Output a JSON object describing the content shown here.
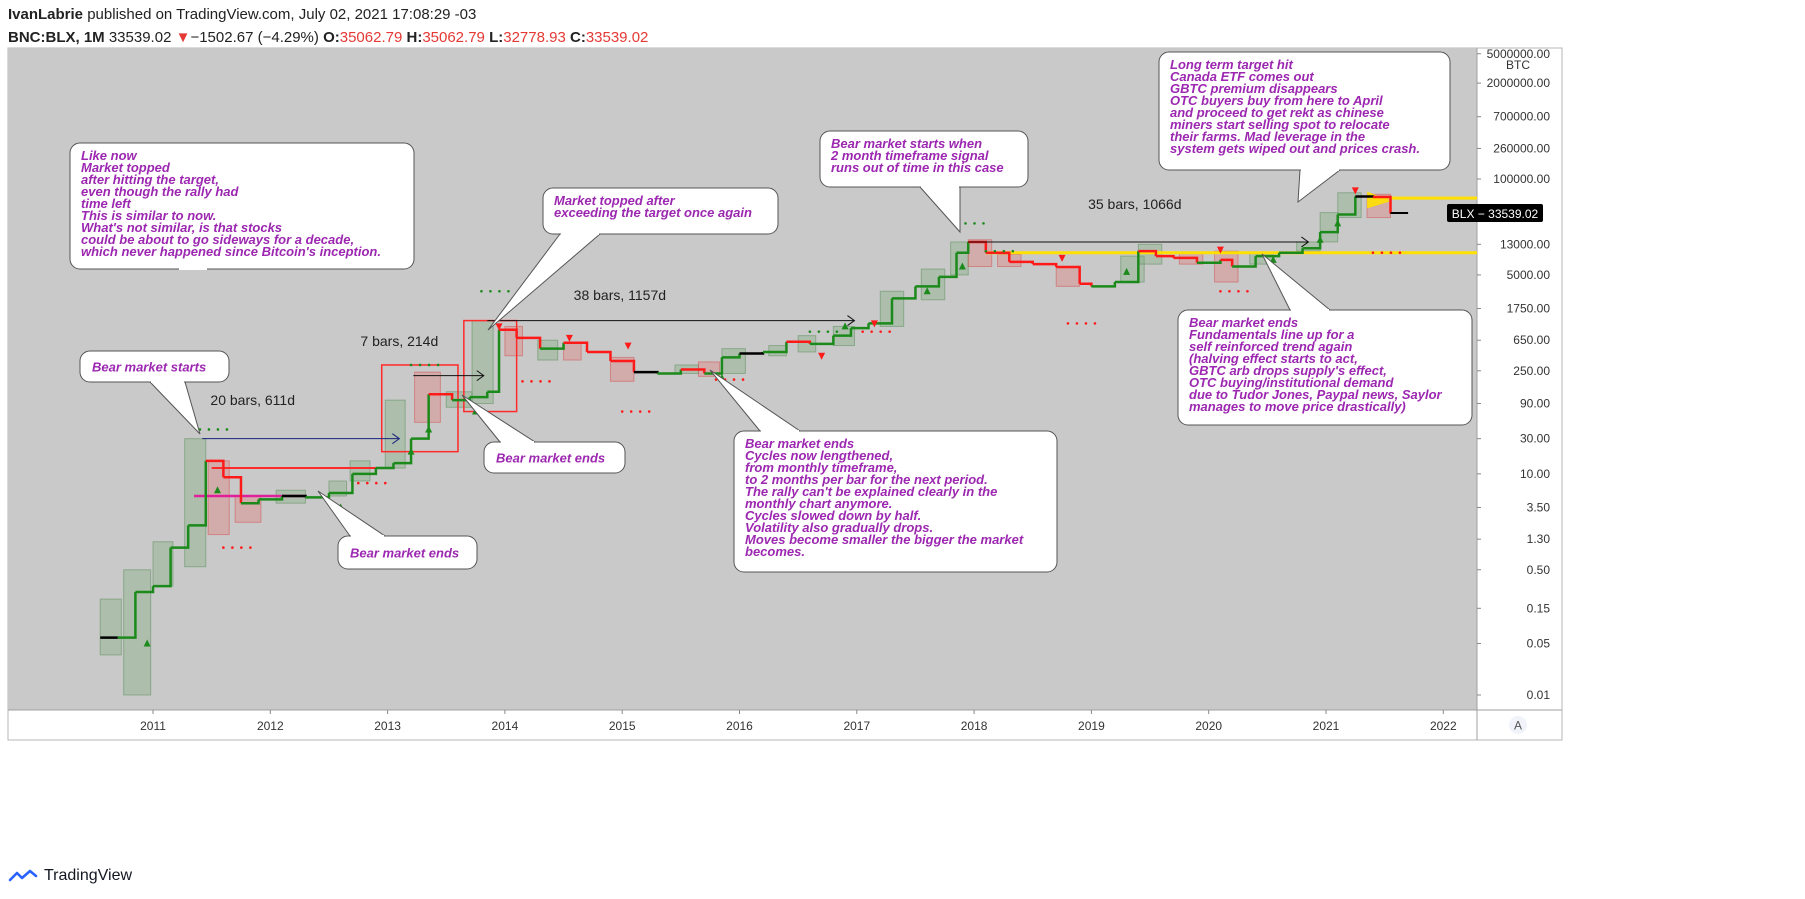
{
  "header": {
    "author": "IvanLabrie",
    "published": "published on TradingView.com, July 02, 2021 17:08:29 -03",
    "symbol": "BNC:BLX, 1M",
    "price": "33539.02",
    "change_arrow": "▼",
    "change": "−1502.67 (−4.29%)",
    "o_label": "O:",
    "o_value": "35062.79",
    "h_label": "H:",
    "h_value": "35062.79",
    "l_label": "L:",
    "l_value": "32778.93",
    "c_label": "C:",
    "c_value": "33539.02"
  },
  "footer": {
    "brand": "TradingView"
  },
  "colors": {
    "bg": "#c9c9c9",
    "up": "#1b8a1b",
    "down": "#ff1a1a",
    "neutral": "#000000",
    "accent_text": "#9c27b0",
    "target_line": "#ffe000"
  },
  "chart_data": {
    "type": "line",
    "title": "BNC:BLX, 1M",
    "yscale": "log",
    "currency": "BTC",
    "ylim": [
      0.008,
      5000000
    ],
    "xlim": [
      2010.1,
      2022.35
    ],
    "x_ticks": [
      "2011",
      "2012",
      "2013",
      "2014",
      "2015",
      "2016",
      "2017",
      "2018",
      "2019",
      "2020",
      "2021",
      "2022"
    ],
    "y_ticks": [
      "5000000.00",
      "2000000.00",
      "700000.00",
      "260000.00",
      "100000.00",
      "13000.00",
      "5000.00",
      "1750.00",
      "650.00",
      "250.00",
      "90.00",
      "30.00",
      "10.00",
      "3.50",
      "1.30",
      "0.50",
      "0.15",
      "0.05",
      "0.01"
    ],
    "last_price_label": "BLX",
    "last_price": "33539.02",
    "series": [
      {
        "name": "BLX monthly step (approx.)",
        "x": [
          2010.55,
          2010.7,
          2010.85,
          2011.0,
          2011.15,
          2011.3,
          2011.45,
          2011.6,
          2011.75,
          2011.9,
          2012.1,
          2012.3,
          2012.5,
          2012.7,
          2012.9,
          2013.05,
          2013.2,
          2013.35,
          2013.55,
          2013.7,
          2013.85,
          2013.95,
          2014.1,
          2014.3,
          2014.5,
          2014.7,
          2014.9,
          2015.1,
          2015.3,
          2015.5,
          2015.7,
          2015.85,
          2016.0,
          2016.2,
          2016.4,
          2016.6,
          2016.8,
          2016.95,
          2017.1,
          2017.3,
          2017.5,
          2017.7,
          2017.85,
          2017.95,
          2018.1,
          2018.3,
          2018.5,
          2018.7,
          2018.9,
          2019.0,
          2019.2,
          2019.4,
          2019.55,
          2019.7,
          2019.9,
          2020.1,
          2020.2,
          2020.4,
          2020.6,
          2020.8,
          2020.95,
          2021.1,
          2021.25,
          2021.4,
          2021.55
        ],
        "y": [
          0.06,
          0.06,
          0.25,
          0.3,
          1.0,
          2.0,
          15.0,
          9.0,
          4.0,
          4.5,
          5.0,
          4.8,
          5.5,
          10.0,
          12.0,
          14.0,
          30.0,
          120.0,
          100.0,
          110.0,
          130.0,
          900.0,
          700.0,
          500.0,
          600.0,
          450.0,
          340.0,
          240.0,
          230.0,
          260.0,
          230.0,
          380.0,
          430.0,
          450.0,
          620.0,
          580.0,
          750.0,
          950.0,
          1100.0,
          2400.0,
          3500.0,
          4700.0,
          10000.0,
          14000.0,
          10000.0,
          7500.0,
          7000.0,
          6400.0,
          3800.0,
          3500.0,
          4000.0,
          10500.0,
          9000.0,
          8500.0,
          7300.0,
          8000.0,
          6500.0,
          9000.0,
          10000.0,
          11500.0,
          19000.0,
          33000.0,
          58000.0,
          57000.0,
          34000.0
        ]
      }
    ],
    "annotations": [
      {
        "label": "Like now\nMarket topped\nafter hitting the target,\neven though the rally had\ntime left\nThis is similar to now.\nWhat's not similar, is that stocks\ncould be about to go sideways for a decade,\nwhich never happened since Bitcoin's inception."
      },
      {
        "label": "Market topped after\nexceeding the target once again"
      },
      {
        "label": "Bear market starts when\n2 month timeframe signal\nruns out of time in this case"
      },
      {
        "label": "Long term target hit\nCanada ETF comes out\nGBTC premium disappears\nOTC buyers buy from here to April\nand proceed to get rekt as chinese\nminers start selling spot to relocate\ntheir farms. Mad leverage in the\nsystem gets wiped out and prices crash."
      },
      {
        "label": "Bear market starts"
      },
      {
        "label": "Bear market ends"
      },
      {
        "label": "Bear market ends"
      },
      {
        "label": "Bear market ends\nCycles now lengthened,\nfrom monthly timeframe,\nto 2 months per bar for the next period.\nThe rally can't be explained clearly in the\nmonthly chart anymore.\nCycles slowed down by half.\nVolatility also gradually drops.\nMoves become smaller the bigger the market\nbecomes."
      },
      {
        "label": "Bear market ends\nFundamentals line up for a\nself reinforced trend again\n(halving effect starts to act,\nGBTC arb drops supply's effect,\nOTC buying/institutional demand\ndue to Tudor Jones, Paypal news, Saylor\nmanages to move price drastically)"
      }
    ],
    "measurements": [
      {
        "label": "20 bars, 611d"
      },
      {
        "label": "7 bars, 214d"
      },
      {
        "label": "38 bars, 1157d"
      },
      {
        "label": "35 bars, 1066d"
      }
    ],
    "axis_badge": "A"
  }
}
